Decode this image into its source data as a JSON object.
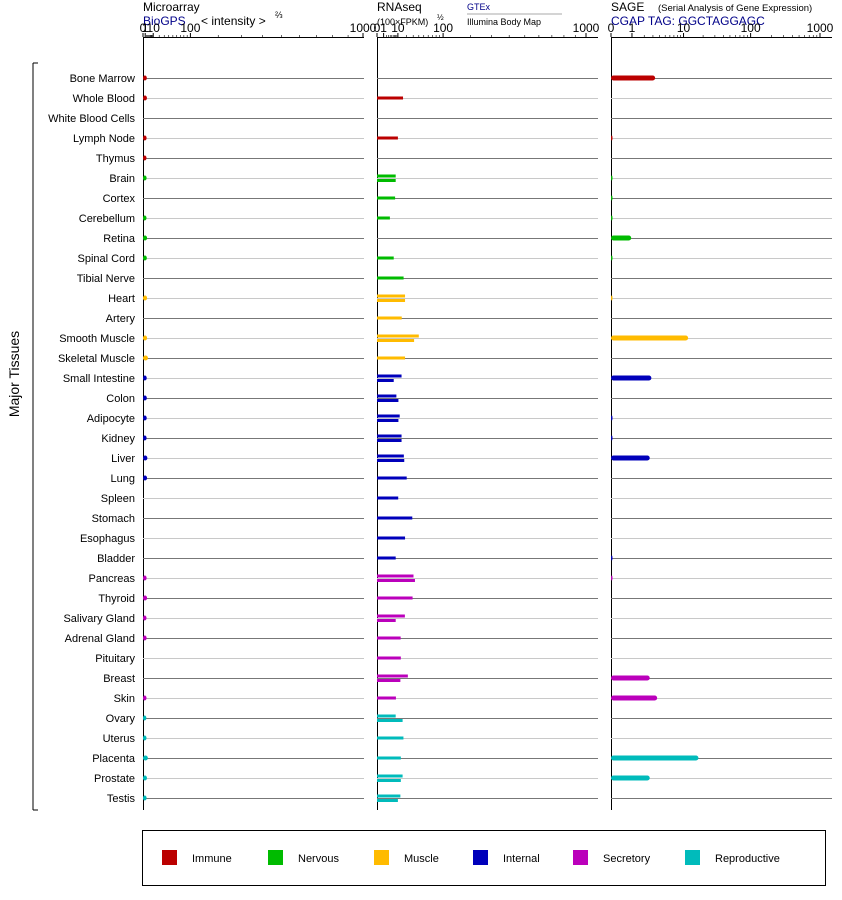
{
  "colors": {
    "Immune": "#bb0000",
    "Nervous": "#00bb00",
    "Muscle": "#ffbb00",
    "Internal": "#0000bb",
    "Secretory": "#bb00bb",
    "Reproductive": "#00bbbb"
  },
  "chart_data": [
    {
      "type": "bar",
      "panel": "microarray",
      "title": "Microarray",
      "subtitle": "BioGPS",
      "axis_label": "< intensity >",
      "axis_exponent": "⅔",
      "scale": "power-2/3",
      "tick_labels": [
        "0",
        "1",
        "10",
        "100",
        "1000"
      ],
      "tick_values": [
        0,
        1,
        10,
        100,
        1000
      ],
      "xlim": [
        0,
        1000
      ],
      "values": [
        2.3,
        2.4,
        0,
        2.1,
        2.0,
        2.1,
        0,
        2.0,
        2.5,
        2.3,
        0,
        2.5,
        0,
        2.5,
        3.4,
        2.2,
        2.3,
        2.2,
        2.1,
        2.8,
        2.5,
        0,
        0,
        0,
        0,
        2.1,
        2.5,
        2.0,
        2.1,
        0,
        0,
        2.0,
        1.9,
        2.0,
        3.3,
        2.4,
        2.1
      ]
    },
    {
      "type": "bar",
      "panel": "rnaseq",
      "title": "RNAseq",
      "subtitle": "(100×FPKM)",
      "axis_exponent": "½",
      "source_1": "GTEx",
      "source_2": "Illumina Body Map",
      "scale": "sqrt",
      "tick_labels": [
        "0",
        "1",
        "10",
        "100",
        "1000"
      ],
      "tick_values": [
        0,
        1,
        10,
        100,
        1000
      ],
      "xlim": [
        0,
        1000
      ],
      "gtex": [
        null,
        15.5,
        null,
        null,
        null,
        8.0,
        7.5,
        3.8,
        null,
        6.4,
        16.2,
        18.0,
        14.0,
        40.0,
        18.0,
        13.8,
        8.6,
        11.8,
        13.8,
        16.5,
        20.2,
        10.3,
        28.5,
        18.0,
        8.0,
        30.5,
        29.0,
        17.8,
        12.8,
        13.0,
        21.8,
        8.2,
        8.0,
        16.0,
        13.0,
        15.0,
        12.5
      ],
      "illumina": [
        null,
        null,
        null,
        10.0,
        null,
        8.0,
        null,
        null,
        null,
        null,
        null,
        18.0,
        null,
        31.5,
        null,
        6.4,
        10.5,
        10.5,
        13.8,
        17.0,
        null,
        null,
        null,
        null,
        null,
        33.0,
        null,
        8.0,
        null,
        null,
        12.5,
        null,
        15.0,
        null,
        null,
        13.0,
        10.0
      ]
    },
    {
      "type": "bar",
      "panel": "sage",
      "title": "SAGE",
      "subtitle": "(Serial Analysis of Gene Expression)",
      "tag": "CGAP TAG: GGCTAGGAGC",
      "scale": "log",
      "tick_labels": [
        "0",
        "1",
        "10",
        "100",
        "1000"
      ],
      "tick_values": [
        0,
        1,
        10,
        100,
        1000
      ],
      "xlim": [
        0,
        1000
      ],
      "values": [
        3.3,
        0,
        0,
        0.04,
        0,
        0.03,
        0.02,
        0.03,
        0.95,
        0.03,
        0,
        0.02,
        0,
        11.8,
        0,
        2.8,
        0,
        0.04,
        0.05,
        2.6,
        0,
        0,
        0,
        0,
        0.03,
        0.04,
        0,
        0,
        0,
        0,
        2.6,
        3.6,
        0,
        0,
        17.0,
        2.6,
        0
      ]
    }
  ],
  "tissues": [
    {
      "name": "Bone Marrow",
      "system": "Immune"
    },
    {
      "name": "Whole Blood",
      "system": "Immune"
    },
    {
      "name": "White Blood Cells",
      "system": "Immune"
    },
    {
      "name": "Lymph Node",
      "system": "Immune"
    },
    {
      "name": "Thymus",
      "system": "Immune"
    },
    {
      "name": "Brain",
      "system": "Nervous"
    },
    {
      "name": "Cortex",
      "system": "Nervous"
    },
    {
      "name": "Cerebellum",
      "system": "Nervous"
    },
    {
      "name": "Retina",
      "system": "Nervous"
    },
    {
      "name": "Spinal Cord",
      "system": "Nervous"
    },
    {
      "name": "Tibial Nerve",
      "system": "Nervous"
    },
    {
      "name": "Heart",
      "system": "Muscle"
    },
    {
      "name": "Artery",
      "system": "Muscle"
    },
    {
      "name": "Smooth Muscle",
      "system": "Muscle"
    },
    {
      "name": "Skeletal Muscle",
      "system": "Muscle"
    },
    {
      "name": "Small Intestine",
      "system": "Internal"
    },
    {
      "name": "Colon",
      "system": "Internal"
    },
    {
      "name": "Adipocyte",
      "system": "Internal"
    },
    {
      "name": "Kidney",
      "system": "Internal"
    },
    {
      "name": "Liver",
      "system": "Internal"
    },
    {
      "name": "Lung",
      "system": "Internal"
    },
    {
      "name": "Spleen",
      "system": "Internal"
    },
    {
      "name": "Stomach",
      "system": "Internal"
    },
    {
      "name": "Esophagus",
      "system": "Internal"
    },
    {
      "name": "Bladder",
      "system": "Internal"
    },
    {
      "name": "Pancreas",
      "system": "Secretory"
    },
    {
      "name": "Thyroid",
      "system": "Secretory"
    },
    {
      "name": "Salivary Gland",
      "system": "Secretory"
    },
    {
      "name": "Adrenal Gland",
      "system": "Secretory"
    },
    {
      "name": "Pituitary",
      "system": "Secretory"
    },
    {
      "name": "Breast",
      "system": "Secretory"
    },
    {
      "name": "Skin",
      "system": "Secretory"
    },
    {
      "name": "Ovary",
      "system": "Reproductive"
    },
    {
      "name": "Uterus",
      "system": "Reproductive"
    },
    {
      "name": "Placenta",
      "system": "Reproductive"
    },
    {
      "name": "Prostate",
      "system": "Reproductive"
    },
    {
      "name": "Testis",
      "system": "Reproductive"
    }
  ],
  "group_label": "Major Tissues",
  "legend": [
    {
      "label": "Immune",
      "system": "Immune"
    },
    {
      "label": "Nervous",
      "system": "Nervous"
    },
    {
      "label": "Muscle",
      "system": "Muscle"
    },
    {
      "label": "Internal",
      "system": "Internal"
    },
    {
      "label": "Secretory",
      "system": "Secretory"
    },
    {
      "label": "Reproductive",
      "system": "Reproductive"
    }
  ]
}
